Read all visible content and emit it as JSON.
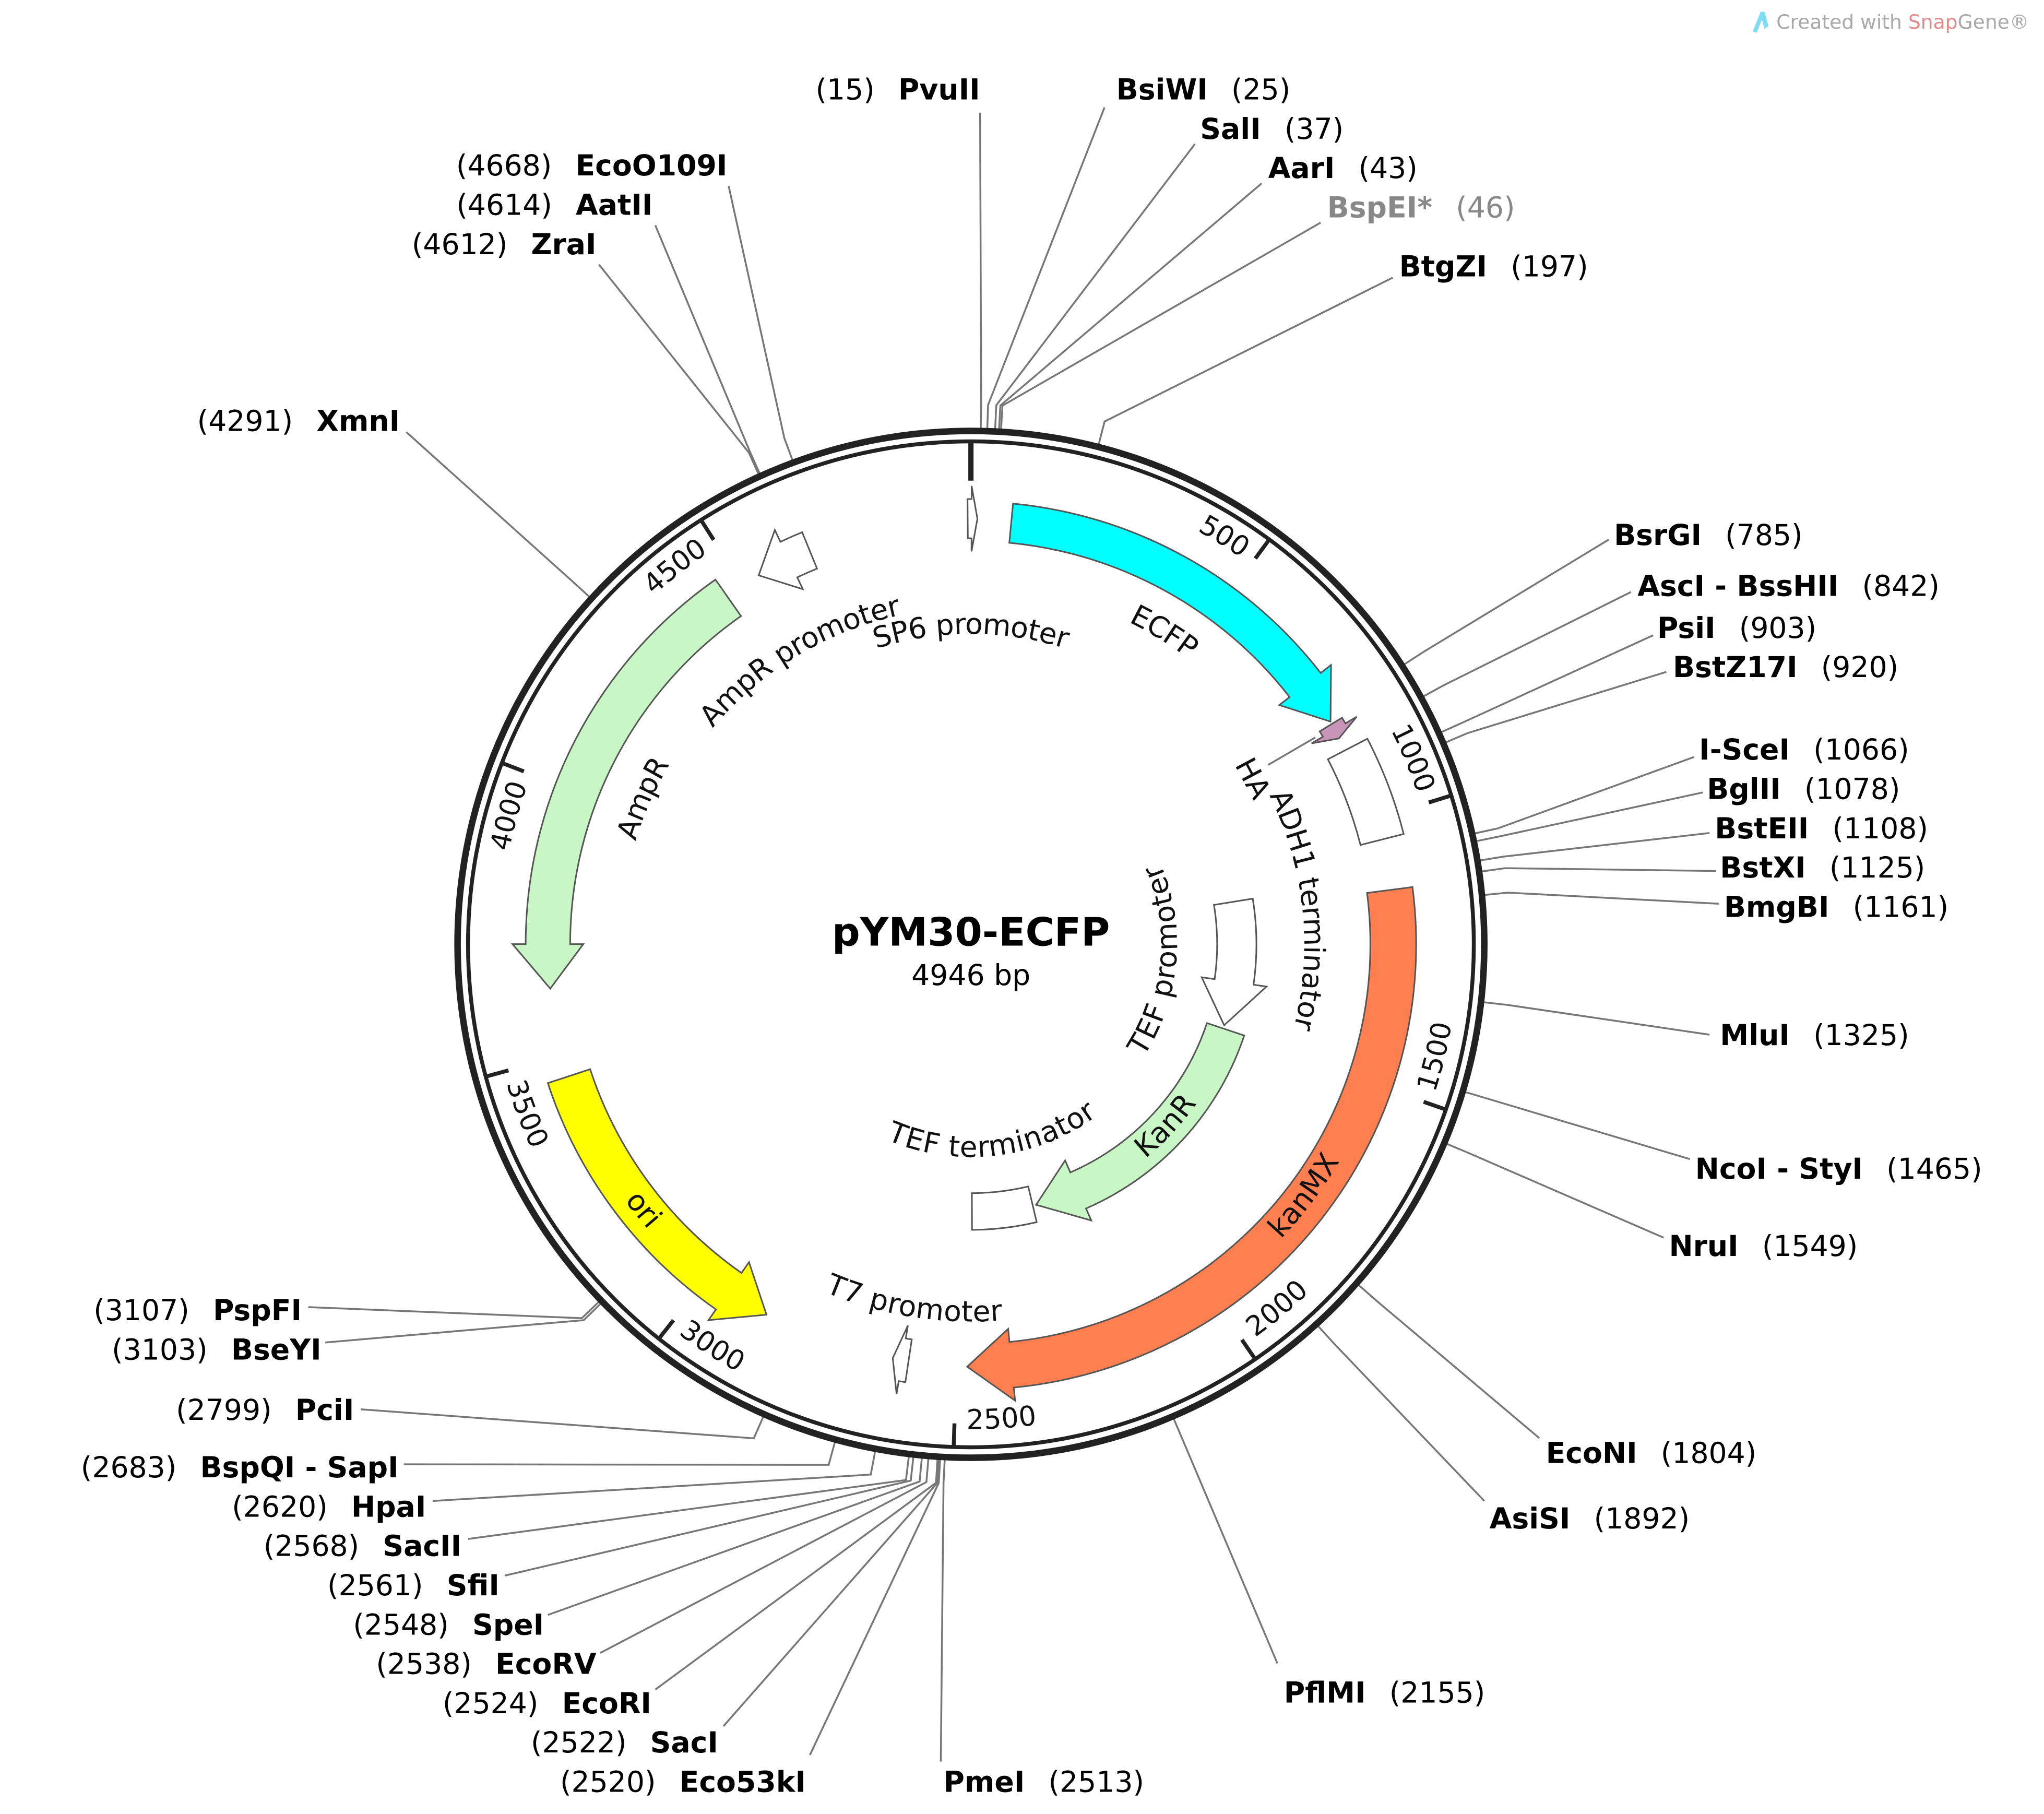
{
  "map": {
    "title": "pYM30-ECFP",
    "length_label": "4946 bp",
    "length_bp": 4946,
    "ring_color": "#222222"
  },
  "watermark": {
    "prefix": "Created with ",
    "brand_a": "Snap",
    "brand_b": "Gene®",
    "brand_color": "#e08a8a",
    "icon": "snapgene-logo-icon",
    "icon_color": "#7fdcf5"
  },
  "ticks": [
    {
      "bp": 500,
      "label": "500"
    },
    {
      "bp": 1000,
      "label": "1000"
    },
    {
      "bp": 1500,
      "label": "1500"
    },
    {
      "bp": 2000,
      "label": "2000"
    },
    {
      "bp": 2500,
      "label": "2500"
    },
    {
      "bp": 3000,
      "label": "3000"
    },
    {
      "bp": 3500,
      "label": "3500"
    },
    {
      "bp": 4000,
      "label": "4000"
    },
    {
      "bp": 4500,
      "label": "4500"
    }
  ],
  "features": [
    {
      "name": "SP6 promoter",
      "start": 4940,
      "end": 12,
      "direction": "forward",
      "shape": "arrow",
      "color": "#ffffff"
    },
    {
      "name": "ECFP",
      "start": 75,
      "end": 800,
      "direction": "forward",
      "shape": "arrow",
      "color": "#00ffff"
    },
    {
      "name": "HA",
      "start": 805,
      "end": 835,
      "direction": "forward",
      "shape": "arrow",
      "color": "#c795b7"
    },
    {
      "name": "ADH1 terminator",
      "start": 860,
      "end": 1040,
      "direction": "none",
      "shape": "box",
      "color": "#ffffff"
    },
    {
      "name": "kanMX",
      "start": 1135,
      "end": 2480,
      "direction": "forward",
      "shape": "arrow",
      "color": "#ff7f50"
    },
    {
      "name": "TEF promoter",
      "start": 1110,
      "end": 1480,
      "direction": "forward",
      "shape": "arrow",
      "color": "#ffffff"
    },
    {
      "name": "KanR",
      "start": 1490,
      "end": 2280,
      "direction": "forward",
      "shape": "arrow",
      "color": "#c8f7c5"
    },
    {
      "name": "TEF terminator",
      "start": 2290,
      "end": 2470,
      "direction": "none",
      "shape": "box",
      "color": "#ffffff"
    },
    {
      "name": "T7 promoter",
      "start": 2590,
      "end": 2620,
      "direction": "forward",
      "shape": "arrow",
      "color": "#ffffff"
    },
    {
      "name": "ori",
      "start": 2870,
      "end": 3460,
      "direction": "reverse",
      "shape": "arrow",
      "color": "#ffff00"
    },
    {
      "name": "AmpR",
      "start": 3627,
      "end": 4465,
      "direction": "reverse",
      "shape": "arrow",
      "color": "#c8f7c5"
    },
    {
      "name": "AmpR promoter",
      "start": 4535,
      "end": 4640,
      "direction": "reverse",
      "shape": "arrow",
      "color": "#ffffff"
    }
  ],
  "enzymes": [
    {
      "name": "PvuII",
      "position": 15
    },
    {
      "name": "BsiWI",
      "position": 25
    },
    {
      "name": "SalI",
      "position": 37
    },
    {
      "name": "AarI",
      "position": 43
    },
    {
      "name": "BspEI*",
      "position": 46,
      "color": "#888888"
    },
    {
      "name": "BtgZI",
      "position": 197
    },
    {
      "name": "EcoO109I",
      "position": 4668
    },
    {
      "name": "AatII",
      "position": 4614
    },
    {
      "name": "ZraI",
      "position": 4612
    },
    {
      "name": "XmnI",
      "position": 4291
    },
    {
      "name": "BsrGI",
      "position": 785
    },
    {
      "name": "AscI - BssHII",
      "position": 842
    },
    {
      "name": "PsiI",
      "position": 903
    },
    {
      "name": "BstZ17I",
      "position": 920
    },
    {
      "name": "I-SceI",
      "position": 1066
    },
    {
      "name": "BglII",
      "position": 1078
    },
    {
      "name": "BstEII",
      "position": 1108
    },
    {
      "name": "BstXI",
      "position": 1125
    },
    {
      "name": "BmgBI",
      "position": 1161
    },
    {
      "name": "MluI",
      "position": 1325
    },
    {
      "name": "NcoI - StyI",
      "position": 1465
    },
    {
      "name": "NruI",
      "position": 1549
    },
    {
      "name": "EcoNI",
      "position": 1804
    },
    {
      "name": "AsiSI",
      "position": 1892
    },
    {
      "name": "PflMI",
      "position": 2155
    },
    {
      "name": "PmeI",
      "position": 2513
    },
    {
      "name": "PspFI",
      "position": 3107
    },
    {
      "name": "BseYI",
      "position": 3103
    },
    {
      "name": "PciI",
      "position": 2799
    },
    {
      "name": "BspQI - SapI",
      "position": 2683
    },
    {
      "name": "HpaI",
      "position": 2620
    },
    {
      "name": "SacII",
      "position": 2568
    },
    {
      "name": "SfiI",
      "position": 2561
    },
    {
      "name": "SpeI",
      "position": 2548
    },
    {
      "name": "EcoRV",
      "position": 2538
    },
    {
      "name": "EcoRI",
      "position": 2524
    },
    {
      "name": "SacI",
      "position": 2522
    },
    {
      "name": "Eco53kI",
      "position": 2520
    }
  ]
}
